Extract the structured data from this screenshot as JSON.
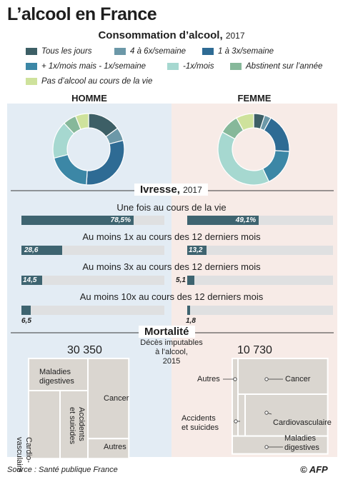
{
  "title": "L’alcool en France",
  "consumption": {
    "title": "Consommation d’alcool,",
    "year": "2017"
  },
  "legend": [
    {
      "label": "Tous les jours",
      "color": "#3d5f66"
    },
    {
      "label": "4 à 6x/semaine",
      "color": "#6c98a8"
    },
    {
      "label": "1 à 3x/semaine",
      "color": "#2e6b94"
    },
    {
      "label": "+ 1x/mois mais - 1x/semaine",
      "color": "#3c87a6"
    },
    {
      "label": "-1x/mois",
      "color": "#a6d8d0"
    },
    {
      "label": "Abstinent sur l’année",
      "color": "#86b89a"
    },
    {
      "label": "Pas d’alcool au cours de la vie",
      "color": "#cee29c"
    }
  ],
  "panels": {
    "homme": "HOMME",
    "femme": "FEMME"
  },
  "ivresse": {
    "title": "Ivresse,",
    "year": "2017",
    "categories": [
      "Une fois au cours de la vie",
      "Au moins 1x au cours des 12 derniers mois",
      "Au moins 3x au cours des 12 derniers mois",
      "Au moins 10x au cours des 12 derniers mois"
    ],
    "homme_labels": [
      "78,5%",
      "28,6",
      "14,5",
      "6,5"
    ],
    "femme_labels": [
      "49,1%",
      "13,2",
      "5,1",
      "1,8"
    ]
  },
  "mortalite": {
    "title": "Mortalité",
    "subtitle_1": "Décès imputables",
    "subtitle_2": "à l’alcool,",
    "subtitle_3": "2015",
    "homme_total": "30 350",
    "femme_total": "10 730",
    "labels": {
      "maladies_1": "Maladies",
      "maladies_2": "digestives",
      "cardio_1": "Cardio-",
      "cardio_2": "vasculaire",
      "accidents_1": "Accidents",
      "accidents_2": "et suicides",
      "cancer": "Cancer",
      "autres": "Autres",
      "cardiovasculaire": "Cardiovasculaire"
    }
  },
  "source": "Source : Santé publique France",
  "credit": "© AFP",
  "chart_data": [
    {
      "type": "pie",
      "title": "HOMME",
      "categories": [
        "Tous les jours",
        "4 à 6x/semaine",
        "1 à 3x/semaine",
        "+ 1x/mois mais - 1x/semaine",
        "-1x/mois",
        "Abstinent sur l’année",
        "Pas d’alcool au cours de la vie"
      ],
      "values": [
        15,
        6,
        30,
        20,
        17,
        6,
        6
      ]
    },
    {
      "type": "pie",
      "title": "FEMME",
      "categories": [
        "Tous les jours",
        "4 à 6x/semaine",
        "1 à 3x/semaine",
        "+ 1x/mois mais - 1x/semaine",
        "-1x/mois",
        "Abstinent sur l’année",
        "Pas d’alcool au cours de la vie"
      ],
      "values": [
        5,
        3,
        18,
        17,
        40,
        9,
        8
      ]
    },
    {
      "type": "bar",
      "title": "Ivresse, 2017",
      "categories": [
        "Une fois au cours de la vie",
        "Au moins 1x au cours des 12 derniers mois",
        "Au moins 3x au cours des 12 derniers mois",
        "Au moins 10x au cours des 12 derniers mois"
      ],
      "series": [
        {
          "name": "HOMME",
          "values": [
            78.5,
            28.6,
            14.5,
            6.5
          ]
        },
        {
          "name": "FEMME",
          "values": [
            49.1,
            13.2,
            5.1,
            1.8
          ]
        }
      ],
      "ylim": [
        0,
        100
      ]
    },
    {
      "type": "bar",
      "title": "Mortalité",
      "categories": [
        "HOMME",
        "FEMME"
      ],
      "values": [
        30350,
        10730
      ]
    }
  ]
}
